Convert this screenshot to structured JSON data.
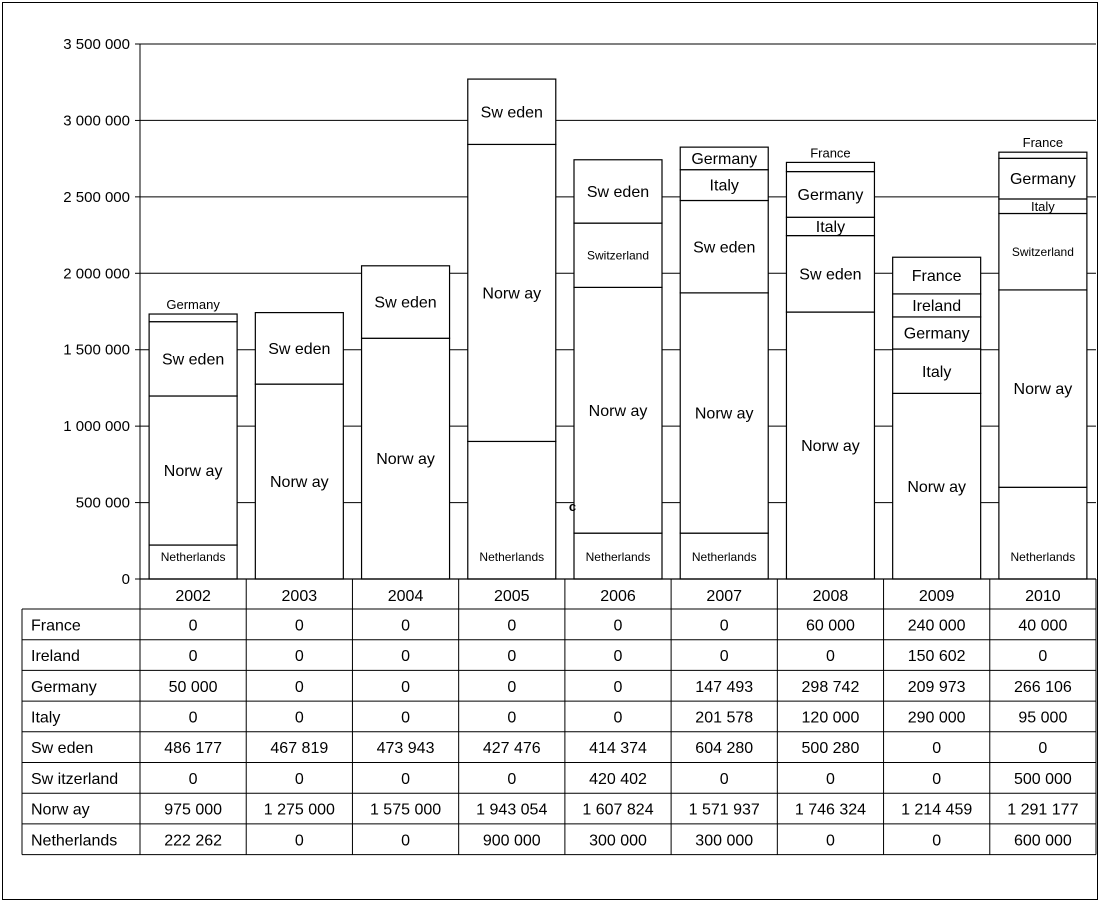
{
  "chart_data": {
    "type": "bar",
    "stacked": true,
    "categories": [
      "2002",
      "2003",
      "2004",
      "2005",
      "2006",
      "2007",
      "2008",
      "2009",
      "2010"
    ],
    "ylim": [
      0,
      3500000
    ],
    "yticks": [
      0,
      500000,
      1000000,
      1500000,
      2000000,
      2500000,
      3000000,
      3500000
    ],
    "ytick_labels": [
      "0",
      "500 000",
      "1 000 000",
      "1 500 000",
      "2 000 000",
      "2 500 000",
      "3 000 000",
      "3 500 000"
    ],
    "grid": true,
    "colors": {
      "bar_fill": "#ffffff",
      "stroke": "#000000",
      "grid": "#000000"
    },
    "series": [
      {
        "name": "Netherlands",
        "row_label": "Netherlands",
        "bar_label": "Netherlands",
        "values": [
          222262,
          0,
          0,
          900000,
          300000,
          300000,
          0,
          0,
          600000
        ],
        "cells": [
          "222 262",
          "0",
          "0",
          "900 000",
          "300 000",
          "300 000",
          "0",
          "0",
          "600 000"
        ]
      },
      {
        "name": "Norway",
        "row_label": "Norw ay",
        "bar_label": "Norw ay",
        "values": [
          975000,
          1275000,
          1575000,
          1943054,
          1607824,
          1571937,
          1746324,
          1214459,
          1291177
        ],
        "cells": [
          "975 000",
          "1 275 000",
          "1 575 000",
          "1 943 054",
          "1 607 824",
          "1 571 937",
          "1 746 324",
          "1 214 459",
          "1 291 177"
        ]
      },
      {
        "name": "Switzerland",
        "row_label": "Sw itzerland",
        "bar_label": "Switzerland",
        "values": [
          0,
          0,
          0,
          0,
          420402,
          0,
          0,
          0,
          500000
        ],
        "cells": [
          "0",
          "0",
          "0",
          "0",
          "420 402",
          "0",
          "0",
          "0",
          "500 000"
        ]
      },
      {
        "name": "Sweden",
        "row_label": "Sw eden",
        "bar_label": "Sw eden",
        "values": [
          486177,
          467819,
          473943,
          427476,
          414374,
          604280,
          500280,
          0,
          0
        ],
        "cells": [
          "486 177",
          "467 819",
          "473 943",
          "427 476",
          "414 374",
          "604 280",
          "500 280",
          "0",
          "0"
        ]
      },
      {
        "name": "Italy",
        "row_label": "Italy",
        "bar_label": "Italy",
        "values": [
          0,
          0,
          0,
          0,
          0,
          201578,
          120000,
          290000,
          95000
        ],
        "cells": [
          "0",
          "0",
          "0",
          "0",
          "0",
          "201 578",
          "120 000",
          "290 000",
          "95 000"
        ]
      },
      {
        "name": "Germany",
        "row_label": "Germany",
        "bar_label": "Germany",
        "values": [
          50000,
          0,
          0,
          0,
          0,
          147493,
          298742,
          209973,
          266106
        ],
        "cells": [
          "50 000",
          "0",
          "0",
          "0",
          "0",
          "147 493",
          "298 742",
          "209 973",
          "266 106"
        ]
      },
      {
        "name": "Ireland",
        "row_label": "Ireland",
        "bar_label": "Ireland",
        "values": [
          0,
          0,
          0,
          0,
          0,
          0,
          0,
          150602,
          0
        ],
        "cells": [
          "0",
          "0",
          "0",
          "0",
          "0",
          "0",
          "0",
          "150 602",
          "0"
        ]
      },
      {
        "name": "France",
        "row_label": "France",
        "bar_label": "France",
        "values": [
          0,
          0,
          0,
          0,
          0,
          0,
          60000,
          240000,
          40000
        ],
        "cells": [
          "0",
          "0",
          "0",
          "0",
          "0",
          "0",
          "60 000",
          "240 000",
          "40 000"
        ]
      }
    ],
    "table_row_order": [
      "France",
      "Ireland",
      "Germany",
      "Italy",
      "Sweden",
      "Switzerland",
      "Norway",
      "Netherlands"
    ],
    "stray_annotation": "c"
  }
}
